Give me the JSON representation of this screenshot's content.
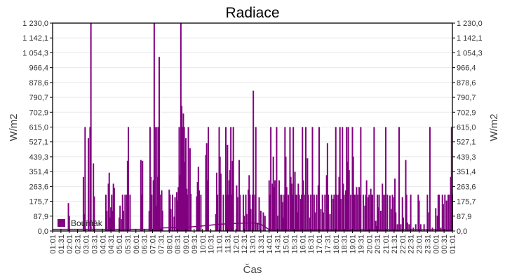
{
  "chart_data": {
    "type": "bar",
    "title": "Radiace",
    "xlabel": "Čas",
    "ylabel": "W/m2",
    "ylim": [
      0,
      1230
    ],
    "grid": true,
    "legend_position": "inside-bottom-left",
    "color": "#800080",
    "y_ticks": [
      "0,0",
      "87,9",
      "175,7",
      "263,6",
      "351,4",
      "439,3",
      "527,1",
      "615,0",
      "702,9",
      "790,7",
      "878,6",
      "966,4",
      "1 054,3",
      "1 142,1",
      "1 230,0"
    ],
    "x_ticks": [
      "01:01",
      "01:31",
      "02:01",
      "02:31",
      "03:01",
      "03:31",
      "04:01",
      "04:31",
      "05:01",
      "05:31",
      "06:01",
      "06:31",
      "07:01",
      "07:31",
      "08:01",
      "08:31",
      "09:01",
      "09:31",
      "10:01",
      "10:31",
      "11:01",
      "11:31",
      "12:01",
      "12:31",
      "13:01",
      "13:31",
      "14:01",
      "14:31",
      "15:01",
      "15:31",
      "16:01",
      "16:31",
      "17:01",
      "17:31",
      "18:01",
      "18:31",
      "19:01",
      "19:31",
      "20:01",
      "20:31",
      "21:01",
      "21:31",
      "22:01",
      "22:31",
      "23:01",
      "23:31",
      "00:01",
      "00:31",
      "01:01"
    ],
    "series": [
      {
        "name": "Bouřňák",
        "baseline": [
          [
            0,
            10
          ],
          [
            12,
            10
          ],
          [
            13,
            18
          ],
          [
            16,
            22
          ],
          [
            18,
            30
          ],
          [
            20,
            40
          ],
          [
            22,
            45
          ],
          [
            24,
            48
          ],
          [
            25,
            40
          ],
          [
            26,
            8
          ],
          [
            48,
            8
          ]
        ],
        "spikes": [
          [
            1.9,
            165
          ],
          [
            2.0,
            90
          ],
          [
            3.7,
            320
          ],
          [
            3.8,
            100
          ],
          [
            3.9,
            615
          ],
          [
            4.3,
            550
          ],
          [
            4.5,
            615
          ],
          [
            4.6,
            1230
          ],
          [
            4.9,
            400
          ],
          [
            5.0,
            205
          ],
          [
            6.4,
            215
          ],
          [
            6.5,
            120
          ],
          [
            6.7,
            280
          ],
          [
            6.8,
            345
          ],
          [
            6.9,
            80
          ],
          [
            7.0,
            140
          ],
          [
            7.1,
            215
          ],
          [
            7.2,
            120
          ],
          [
            7.3,
            280
          ],
          [
            7.4,
            255
          ],
          [
            8.0,
            80
          ],
          [
            8.1,
            150
          ],
          [
            8.3,
            70
          ],
          [
            8.4,
            215
          ],
          [
            8.5,
            120
          ],
          [
            8.7,
            215
          ],
          [
            8.9,
            215
          ],
          [
            9.0,
            415
          ],
          [
            9.1,
            615
          ],
          [
            9.3,
            215
          ],
          [
            10.6,
            420
          ],
          [
            10.7,
            215
          ],
          [
            10.8,
            415
          ],
          [
            11.6,
            120
          ],
          [
            11.7,
            615
          ],
          [
            11.8,
            320
          ],
          [
            11.9,
            215
          ],
          [
            12.1,
            300
          ],
          [
            12.2,
            1230
          ],
          [
            12.3,
            615
          ],
          [
            12.4,
            150
          ],
          [
            12.5,
            615
          ],
          [
            12.6,
            320
          ],
          [
            12.7,
            615
          ],
          [
            12.8,
            1030
          ],
          [
            12.9,
            215
          ],
          [
            13.1,
            240
          ],
          [
            13.2,
            120
          ],
          [
            14.0,
            245
          ],
          [
            14.1,
            215
          ],
          [
            14.2,
            130
          ],
          [
            14.4,
            215
          ],
          [
            14.6,
            85
          ],
          [
            14.7,
            200
          ],
          [
            14.9,
            230
          ],
          [
            15.0,
            180
          ],
          [
            15.1,
            260
          ],
          [
            15.2,
            615
          ],
          [
            15.3,
            330
          ],
          [
            15.4,
            1230
          ],
          [
            15.5,
            740
          ],
          [
            15.6,
            615
          ],
          [
            15.7,
            695
          ],
          [
            15.8,
            615
          ],
          [
            15.9,
            410
          ],
          [
            16.0,
            550
          ],
          [
            16.1,
            250
          ],
          [
            16.2,
            215
          ],
          [
            16.3,
            615
          ],
          [
            16.5,
            490
          ],
          [
            16.6,
            220
          ],
          [
            17.3,
            205
          ],
          [
            17.4,
            290
          ],
          [
            17.5,
            380
          ],
          [
            17.6,
            240
          ],
          [
            17.8,
            215
          ],
          [
            18.4,
            450
          ],
          [
            18.5,
            520
          ],
          [
            18.6,
            300
          ],
          [
            18.7,
            615
          ],
          [
            19.6,
            100
          ],
          [
            19.7,
            345
          ],
          [
            19.8,
            215
          ],
          [
            20.0,
            615
          ],
          [
            20.1,
            440
          ],
          [
            20.2,
            340
          ],
          [
            20.5,
            215
          ],
          [
            20.8,
            615
          ],
          [
            20.9,
            215
          ],
          [
            21.0,
            510
          ],
          [
            21.1,
            215
          ],
          [
            21.2,
            300
          ],
          [
            21.3,
            360
          ],
          [
            21.4,
            615
          ],
          [
            21.5,
            215
          ],
          [
            21.6,
            415
          ],
          [
            21.7,
            615
          ],
          [
            22.1,
            270
          ],
          [
            22.2,
            200
          ],
          [
            22.4,
            420
          ],
          [
            22.5,
            215
          ],
          [
            22.9,
            215
          ],
          [
            23.0,
            90
          ],
          [
            23.2,
            215
          ],
          [
            23.3,
            100
          ],
          [
            23.5,
            245
          ],
          [
            23.6,
            330
          ],
          [
            23.7,
            215
          ],
          [
            23.8,
            130
          ],
          [
            24.0,
            215
          ],
          [
            24.1,
            830
          ],
          [
            24.3,
            215
          ],
          [
            24.4,
            615
          ],
          [
            24.6,
            50
          ],
          [
            24.8,
            200
          ],
          [
            25.0,
            120
          ],
          [
            25.3,
            110
          ],
          [
            25.5,
            90
          ],
          [
            26.0,
            300
          ],
          [
            26.1,
            215
          ],
          [
            26.2,
            615
          ],
          [
            26.4,
            280
          ],
          [
            26.5,
            440
          ],
          [
            26.6,
            260
          ],
          [
            26.7,
            300
          ],
          [
            26.9,
            615
          ],
          [
            27.0,
            90
          ],
          [
            27.2,
            300
          ],
          [
            27.4,
            215
          ],
          [
            27.5,
            215
          ],
          [
            27.6,
            170
          ],
          [
            27.7,
            80
          ],
          [
            27.8,
            215
          ],
          [
            27.9,
            615
          ],
          [
            28.0,
            440
          ],
          [
            28.1,
            260
          ],
          [
            28.3,
            215
          ],
          [
            28.5,
            615
          ],
          [
            28.6,
            320
          ],
          [
            28.7,
            280
          ],
          [
            28.8,
            215
          ],
          [
            28.9,
            615
          ],
          [
            29.1,
            350
          ],
          [
            29.2,
            215
          ],
          [
            29.3,
            215
          ],
          [
            29.4,
            110
          ],
          [
            29.5,
            280
          ],
          [
            29.6,
            215
          ],
          [
            29.8,
            190
          ],
          [
            29.9,
            215
          ],
          [
            30.0,
            615
          ],
          [
            30.1,
            300
          ],
          [
            30.3,
            215
          ],
          [
            30.4,
            615
          ],
          [
            30.6,
            430
          ],
          [
            30.7,
            215
          ],
          [
            30.9,
            80
          ],
          [
            31.0,
            215
          ],
          [
            31.2,
            615
          ],
          [
            31.4,
            215
          ],
          [
            31.5,
            110
          ],
          [
            31.7,
            215
          ],
          [
            31.9,
            270
          ],
          [
            32.0,
            615
          ],
          [
            32.2,
            130
          ],
          [
            32.4,
            215
          ],
          [
            32.5,
            110
          ],
          [
            32.7,
            215
          ],
          [
            32.9,
            330
          ],
          [
            33.0,
            520
          ],
          [
            33.1,
            215
          ],
          [
            33.3,
            100
          ],
          [
            33.5,
            215
          ],
          [
            33.7,
            190
          ],
          [
            33.8,
            215
          ],
          [
            34.0,
            615
          ],
          [
            34.1,
            215
          ],
          [
            34.3,
            215
          ],
          [
            34.4,
            320
          ],
          [
            34.5,
            615
          ],
          [
            34.6,
            190
          ],
          [
            34.8,
            615
          ],
          [
            34.9,
            280
          ],
          [
            35.0,
            215
          ],
          [
            35.2,
            240
          ],
          [
            35.3,
            615
          ],
          [
            35.4,
            410
          ],
          [
            35.5,
            615
          ],
          [
            35.6,
            360
          ],
          [
            35.8,
            215
          ],
          [
            36.0,
            615
          ],
          [
            36.1,
            440
          ],
          [
            36.2,
            215
          ],
          [
            36.3,
            215
          ],
          [
            36.5,
            260
          ],
          [
            36.6,
            215
          ],
          [
            36.8,
            260
          ],
          [
            36.9,
            215
          ],
          [
            37.0,
            615
          ],
          [
            37.3,
            215
          ],
          [
            37.5,
            150
          ],
          [
            37.6,
            215
          ],
          [
            37.7,
            300
          ],
          [
            37.9,
            200
          ],
          [
            38.0,
            215
          ],
          [
            38.2,
            250
          ],
          [
            38.3,
            215
          ],
          [
            38.4,
            215
          ],
          [
            38.6,
            615
          ],
          [
            38.8,
            60
          ],
          [
            38.9,
            30
          ],
          [
            39.0,
            215
          ],
          [
            39.1,
            140
          ],
          [
            39.2,
            215
          ],
          [
            39.4,
            120
          ],
          [
            39.6,
            280
          ],
          [
            39.7,
            215
          ],
          [
            39.9,
            215
          ],
          [
            40.0,
            615
          ],
          [
            40.2,
            215
          ],
          [
            40.5,
            210
          ],
          [
            40.7,
            130
          ],
          [
            40.8,
            215
          ],
          [
            41.0,
            200
          ],
          [
            41.1,
            310
          ],
          [
            41.2,
            110
          ],
          [
            41.4,
            40
          ],
          [
            41.6,
            615
          ],
          [
            41.8,
            40
          ],
          [
            42.0,
            200
          ],
          [
            42.1,
            80
          ],
          [
            42.4,
            420
          ],
          [
            42.5,
            215
          ],
          [
            42.6,
            50
          ],
          [
            42.8,
            40
          ],
          [
            43.0,
            215
          ],
          [
            43.3,
            20
          ],
          [
            43.6,
            40
          ],
          [
            43.9,
            215
          ],
          [
            44.0,
            180
          ],
          [
            44.2,
            40
          ],
          [
            44.6,
            40
          ],
          [
            45.0,
            215
          ],
          [
            45.1,
            110
          ],
          [
            45.3,
            615
          ],
          [
            45.6,
            20
          ],
          [
            46.0,
            135
          ],
          [
            46.2,
            90
          ],
          [
            46.3,
            215
          ],
          [
            46.4,
            215
          ],
          [
            46.6,
            20
          ],
          [
            46.8,
            215
          ],
          [
            46.9,
            160
          ],
          [
            47.1,
            215
          ],
          [
            47.3,
            180
          ],
          [
            47.5,
            215
          ],
          [
            47.6,
            215
          ],
          [
            47.8,
            320
          ],
          [
            47.9,
            615
          ],
          [
            48.0,
            215
          ]
        ]
      }
    ]
  }
}
